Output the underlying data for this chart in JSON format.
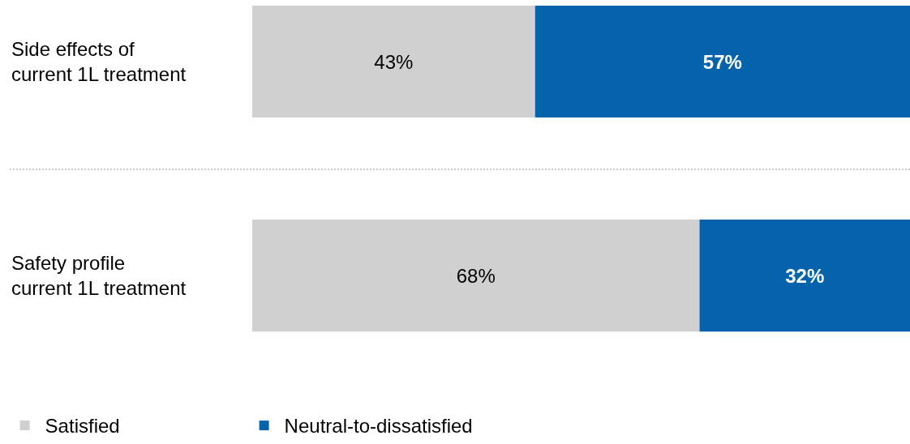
{
  "chart_data": {
    "type": "bar",
    "orientation": "horizontal",
    "stacked": true,
    "xlim": [
      0,
      100
    ],
    "tick_labels": "y",
    "categories": [
      "Side effects of current 1L treatment",
      "Safety profile current 1L treatment"
    ],
    "series": [
      {
        "name": "Satisfied",
        "color": "#d0d0d0",
        "values": [
          43,
          68
        ],
        "value_labels": [
          "43%",
          "68%"
        ]
      },
      {
        "name": "Neutral-to-dissatisfied",
        "color": "#0563ab",
        "values": [
          57,
          32
        ],
        "value_labels": [
          "57%",
          "32%"
        ]
      }
    ],
    "legend": "bottom left"
  }
}
